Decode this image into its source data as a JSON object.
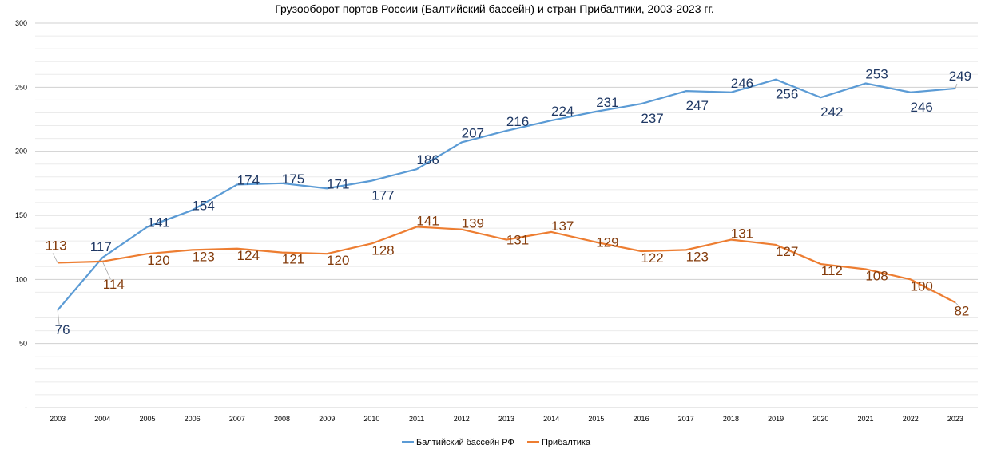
{
  "chart_data": {
    "type": "line",
    "title": "Грузооборот портов России (Балтийский бассейн) и стран Прибалтики, 2003-2023 гг.",
    "xlabel": "",
    "ylabel": "",
    "x": [
      "2003",
      "2004",
      "2005",
      "2006",
      "2007",
      "2008",
      "2009",
      "2010",
      "2011",
      "2012",
      "2013",
      "2014",
      "2015",
      "2016",
      "2017",
      "2018",
      "2019",
      "2020",
      "2021",
      "2022",
      "2023"
    ],
    "y_ticks": [
      "-",
      "50",
      "100",
      "150",
      "200",
      "250",
      "300"
    ],
    "ylim": [
      0,
      300
    ],
    "grid": true,
    "legend_position": "bottom",
    "series": [
      {
        "name": "Балтийский бассейн РФ",
        "color": "#5B9BD5",
        "label_color": "#1F3864",
        "values": [
          76,
          117,
          141,
          154,
          174,
          175,
          171,
          177,
          186,
          207,
          216,
          224,
          231,
          237,
          247,
          246,
          256,
          242,
          253,
          246,
          249
        ]
      },
      {
        "name": "Прибалтика",
        "color": "#ED7D31",
        "label_color": "#843C0C",
        "values": [
          113,
          114,
          120,
          123,
          124,
          121,
          120,
          128,
          141,
          139,
          131,
          137,
          129,
          122,
          123,
          131,
          127,
          112,
          108,
          100,
          82
        ]
      }
    ]
  }
}
